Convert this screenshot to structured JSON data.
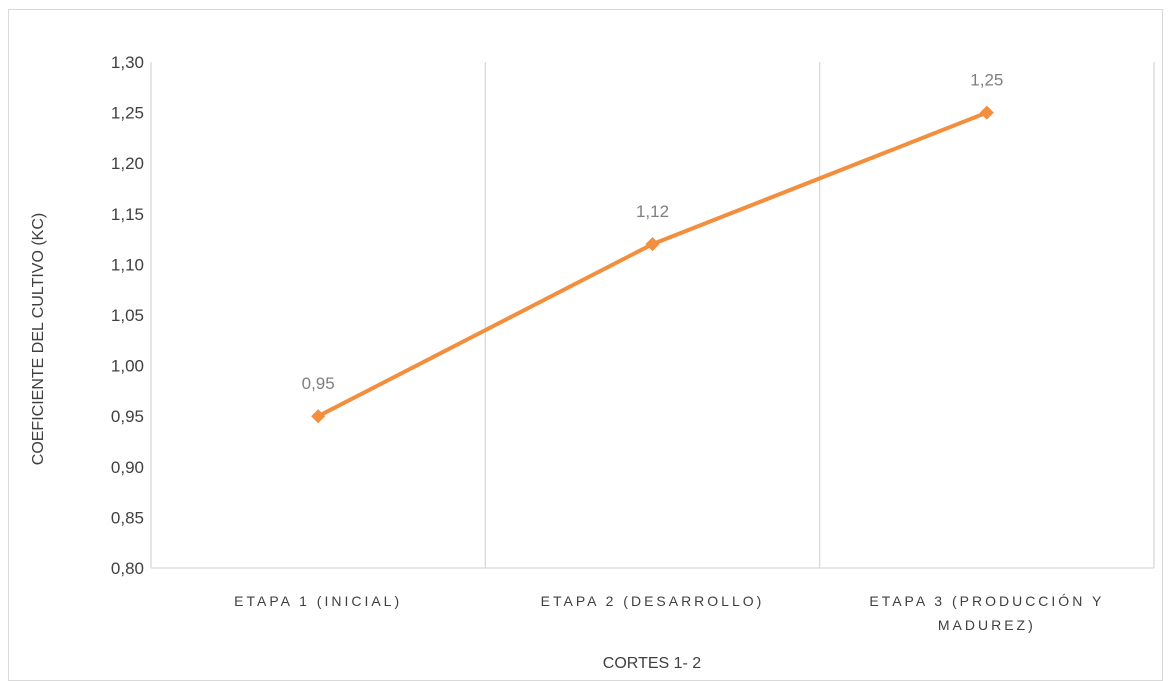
{
  "chart_data": {
    "type": "line",
    "title": "",
    "xlabel": "CORTES 1- 2",
    "ylabel": "COEFICIENTE DEL CULTIVO (KC)",
    "categories": [
      [
        "ETAPA 1   (INICIAL)"
      ],
      [
        "ETAPA 2  (DESARROLLO)"
      ],
      [
        "ETAPA 3 (PRODUCCIÓN Y",
        "MADUREZ)"
      ]
    ],
    "series": [
      {
        "values": [
          0.95,
          1.12,
          1.25
        ],
        "data_labels": [
          "0,95",
          "1,12",
          "1,25"
        ],
        "color": "#F28E3C",
        "marker": "diamond"
      }
    ],
    "ylim": [
      0.8,
      1.3
    ],
    "yticks": [
      "0,80",
      "0,85",
      "0,90",
      "0,95",
      "1,00",
      "1,05",
      "1,10",
      "1,15",
      "1,20",
      "1,25",
      "1,30"
    ],
    "grid": {
      "vertical_category_separators": true,
      "horizontal": false
    },
    "legend": "none",
    "colors": {
      "gridline": "#d9d9d9",
      "text": "#404040",
      "data_label": "#7f7f7f"
    }
  }
}
